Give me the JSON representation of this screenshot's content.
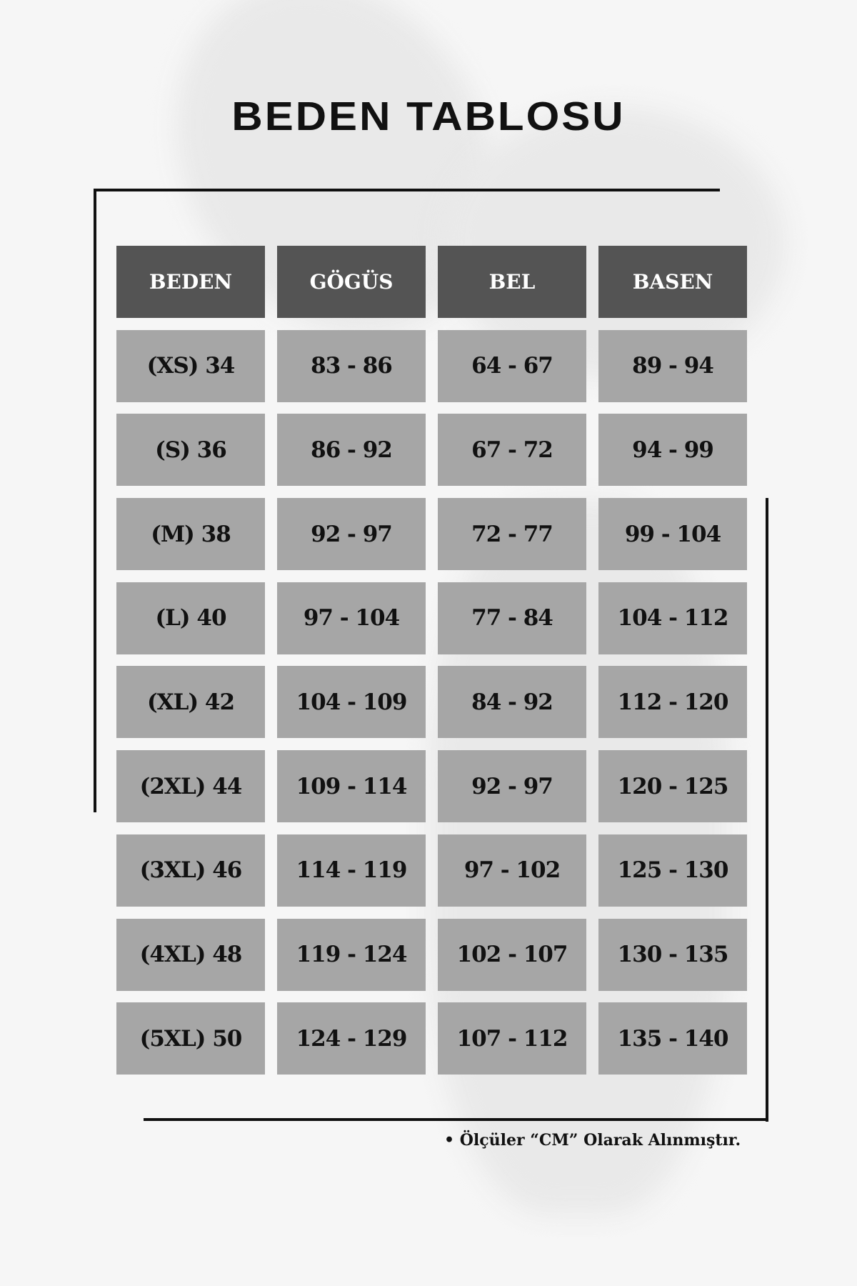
{
  "title": "BEDEN TABLOSU",
  "table": {
    "headers": [
      "BEDEN",
      "GÖGÜS",
      "BEL",
      "BASEN"
    ],
    "rows": [
      [
        "(XS) 34",
        "83 - 86",
        "64 - 67",
        "89 - 94"
      ],
      [
        "(S) 36",
        "86 - 92",
        "67 - 72",
        "94 - 99"
      ],
      [
        "(M) 38",
        "92 - 97",
        "72 - 77",
        "99 - 104"
      ],
      [
        "(L) 40",
        "97 - 104",
        "77 - 84",
        "104 - 112"
      ],
      [
        "(XL) 42",
        "104 - 109",
        "84 - 92",
        "112 - 120"
      ],
      [
        "(2XL) 44",
        "109 - 114",
        "92 - 97",
        "120 - 125"
      ],
      [
        "(3XL) 46",
        "114 - 119",
        "97 - 102",
        "125 - 130"
      ],
      [
        "(4XL) 48",
        "119 - 124",
        "102 - 107",
        "130 - 135"
      ],
      [
        "(5XL) 50",
        "124 - 129",
        "107 - 112",
        "135 - 140"
      ]
    ]
  },
  "note": "• Ölçüler “CM” Olarak Alınmıştır.",
  "colors": {
    "header_bg": "#545454",
    "cell_bg": "#a6a6a6",
    "background": "#f6f6f6"
  }
}
